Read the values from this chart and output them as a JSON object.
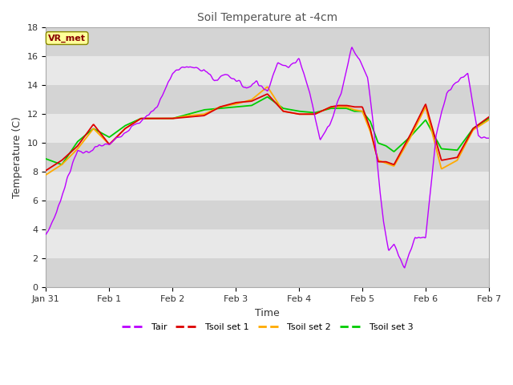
{
  "title": "Soil Temperature at -4cm",
  "xlabel": "Time",
  "ylabel": "Temperature (C)",
  "ylim": [
    0,
    18
  ],
  "xlim": [
    0,
    168
  ],
  "x_ticks": [
    0,
    24,
    48,
    72,
    96,
    120,
    144,
    168
  ],
  "x_tick_labels": [
    "Jan 31",
    "Feb 1",
    "Feb 2",
    "Feb 3",
    "Feb 4",
    "Feb 5",
    "Feb 6",
    "Feb 7"
  ],
  "y_ticks": [
    0,
    2,
    4,
    6,
    8,
    10,
    12,
    14,
    16,
    18
  ],
  "colors": {
    "Tair": "#bb00ff",
    "Tsoil1": "#dd0000",
    "Tsoil2": "#ffaa00",
    "Tsoil3": "#00cc00"
  },
  "bg_color_light": "#e8e8e8",
  "bg_color_dark": "#d4d4d4",
  "vr_met_bg": "#ffff99",
  "vr_met_border": "#888800",
  "vr_met_text": "#880000",
  "title_color": "#555555",
  "label_color": "#333333",
  "tair_keyframes_x": [
    0,
    4,
    8,
    12,
    16,
    20,
    24,
    30,
    36,
    42,
    48,
    52,
    56,
    60,
    64,
    68,
    72,
    76,
    80,
    84,
    88,
    92,
    96,
    100,
    104,
    108,
    112,
    116,
    120,
    122,
    124,
    126,
    128,
    130,
    132,
    136,
    140,
    144,
    148,
    152,
    156,
    160,
    164,
    168
  ],
  "tair_keyframes_y": [
    3.6,
    5.2,
    7.5,
    9.5,
    9.3,
    9.8,
    9.9,
    10.8,
    11.5,
    12.5,
    14.8,
    15.3,
    15.2,
    15.1,
    14.3,
    14.8,
    14.4,
    13.8,
    14.3,
    13.5,
    15.7,
    15.2,
    15.9,
    13.5,
    10.2,
    11.5,
    13.5,
    16.7,
    15.3,
    14.5,
    11.5,
    8.0,
    4.5,
    2.5,
    3.0,
    1.3,
    3.5,
    3.5,
    10.5,
    13.5,
    14.3,
    14.8,
    10.5,
    10.3
  ],
  "tsoil1_keyframes_x": [
    0,
    6,
    12,
    18,
    24,
    30,
    36,
    42,
    48,
    54,
    60,
    66,
    72,
    78,
    84,
    90,
    96,
    102,
    108,
    111,
    114,
    117,
    120,
    123,
    126,
    129,
    132,
    138,
    144,
    150,
    156,
    162,
    168
  ],
  "tsoil1_keyframes_y": [
    8.1,
    8.8,
    9.8,
    11.3,
    9.9,
    11.0,
    11.7,
    11.7,
    11.7,
    11.8,
    11.9,
    12.5,
    12.8,
    12.9,
    13.4,
    12.2,
    12.0,
    12.0,
    12.5,
    12.6,
    12.6,
    12.5,
    12.5,
    11.0,
    8.7,
    8.7,
    8.5,
    10.5,
    12.7,
    8.8,
    9.0,
    11.0,
    11.8
  ],
  "tsoil2_keyframes_x": [
    0,
    6,
    12,
    18,
    24,
    30,
    36,
    42,
    48,
    54,
    60,
    66,
    72,
    78,
    84,
    90,
    96,
    102,
    108,
    111,
    114,
    117,
    120,
    123,
    126,
    129,
    132,
    138,
    144,
    150,
    156,
    162,
    168
  ],
  "tsoil2_keyframes_y": [
    7.8,
    8.5,
    9.6,
    11.0,
    9.9,
    11.0,
    11.7,
    11.7,
    11.7,
    11.9,
    12.0,
    12.5,
    12.7,
    13.0,
    13.9,
    12.2,
    12.0,
    12.0,
    12.5,
    12.5,
    12.5,
    12.3,
    12.2,
    10.8,
    8.8,
    8.6,
    8.4,
    10.3,
    12.5,
    8.2,
    8.8,
    10.9,
    11.6
  ],
  "tsoil3_keyframes_x": [
    0,
    6,
    12,
    18,
    24,
    30,
    36,
    42,
    48,
    54,
    60,
    66,
    72,
    78,
    84,
    90,
    96,
    102,
    108,
    111,
    114,
    117,
    120,
    123,
    126,
    129,
    132,
    138,
    144,
    150,
    156,
    162,
    168
  ],
  "tsoil3_keyframes_y": [
    8.9,
    8.5,
    10.1,
    11.0,
    10.4,
    11.2,
    11.7,
    11.7,
    11.7,
    12.0,
    12.3,
    12.4,
    12.5,
    12.6,
    13.2,
    12.4,
    12.2,
    12.1,
    12.4,
    12.4,
    12.4,
    12.2,
    12.2,
    11.5,
    10.0,
    9.8,
    9.4,
    10.4,
    11.6,
    9.6,
    9.5,
    11.0,
    11.7
  ]
}
